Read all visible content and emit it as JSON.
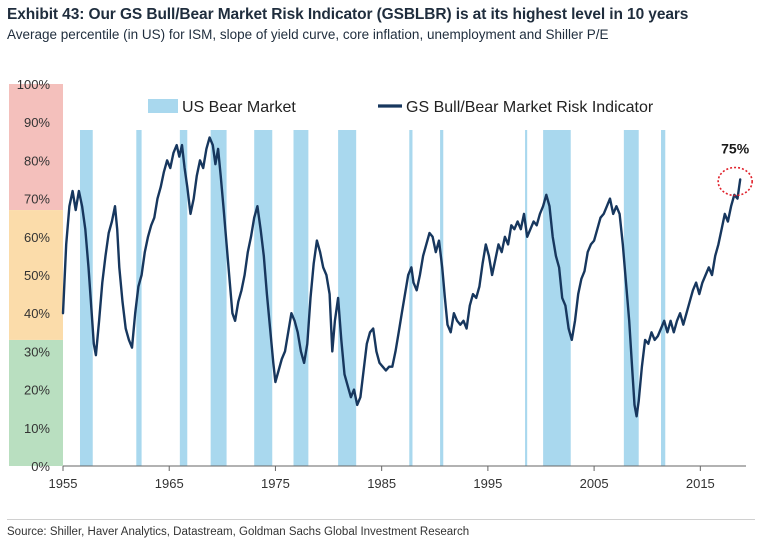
{
  "title": "Exhibit 43: Our GS Bull/Bear Market Risk Indicator (GSBLBR) is at its highest level in 10 years",
  "subtitle": "Average percentile (in US) for ISM, slope of yield curve, core inflation, unemployment and Shiller P/E",
  "source": "Source: Shiller, Haver Analytics, Datastream, Goldman Sachs Global Investment Research",
  "colors": {
    "line": "#17375e",
    "bear": "#a9d8ee",
    "zone_red": "#f4c0bc",
    "zone_orange": "#fbdcaa",
    "zone_green": "#b9dfc0",
    "highlight": "#e0202a"
  },
  "chart_data": {
    "type": "line",
    "xlim": [
      1955,
      2019.3
    ],
    "ylim": [
      0,
      100
    ],
    "x_ticks": [
      1955,
      1965,
      1975,
      1985,
      1995,
      2005,
      2015
    ],
    "y_ticks": [
      {
        "value": 0,
        "label": "0%"
      },
      {
        "value": 10,
        "label": "10%"
      },
      {
        "value": 20,
        "label": "20%"
      },
      {
        "value": 30,
        "label": "30%"
      },
      {
        "value": 40,
        "label": "40%"
      },
      {
        "value": 50,
        "label": "50%"
      },
      {
        "value": 60,
        "label": "60%"
      },
      {
        "value": 70,
        "label": "70%"
      },
      {
        "value": 80,
        "label": "80%"
      },
      {
        "value": 90,
        "label": "90%"
      },
      {
        "value": 100,
        "label": "100%"
      }
    ],
    "grid": false,
    "legend_position": "top",
    "legend": [
      {
        "label": "US Bear Market",
        "kind": "bar"
      },
      {
        "label": "GS Bull/Bear Market Risk Indicator",
        "kind": "line"
      }
    ],
    "zones": [
      {
        "from": 0,
        "to": 33,
        "color": "green"
      },
      {
        "from": 67,
        "to": 100,
        "color": "red"
      },
      {
        "from": 33,
        "to": 67,
        "color": "orange"
      }
    ],
    "bear_markets": [
      [
        1956.6,
        1957.8
      ],
      [
        1961.9,
        1962.4
      ],
      [
        1966.0,
        1966.7
      ],
      [
        1968.9,
        1970.4
      ],
      [
        1973.0,
        1974.7
      ],
      [
        1976.7,
        1978.1
      ],
      [
        1980.9,
        1982.6
      ],
      [
        1987.6,
        1987.9
      ],
      [
        1990.5,
        1990.8
      ],
      [
        1998.5,
        1998.7
      ],
      [
        2000.2,
        2002.8
      ],
      [
        2007.8,
        2009.2
      ],
      [
        2011.3,
        2011.7
      ]
    ],
    "series": [
      {
        "name": "GS Bull/Bear Market Risk Indicator",
        "points": [
          [
            1955.0,
            40
          ],
          [
            1955.3,
            58
          ],
          [
            1955.6,
            68
          ],
          [
            1955.9,
            72
          ],
          [
            1956.2,
            67
          ],
          [
            1956.5,
            72
          ],
          [
            1956.8,
            68
          ],
          [
            1957.1,
            62
          ],
          [
            1957.4,
            52
          ],
          [
            1957.7,
            40
          ],
          [
            1957.9,
            32
          ],
          [
            1958.1,
            29
          ],
          [
            1958.4,
            38
          ],
          [
            1958.7,
            48
          ],
          [
            1959.0,
            55
          ],
          [
            1959.3,
            61
          ],
          [
            1959.6,
            64
          ],
          [
            1959.9,
            68
          ],
          [
            1960.1,
            62
          ],
          [
            1960.3,
            52
          ],
          [
            1960.6,
            43
          ],
          [
            1960.9,
            36
          ],
          [
            1961.2,
            33
          ],
          [
            1961.5,
            31
          ],
          [
            1961.8,
            40
          ],
          [
            1962.1,
            47
          ],
          [
            1962.4,
            50
          ],
          [
            1962.7,
            56
          ],
          [
            1963.0,
            60
          ],
          [
            1963.3,
            63
          ],
          [
            1963.6,
            65
          ],
          [
            1963.9,
            70
          ],
          [
            1964.2,
            73
          ],
          [
            1964.5,
            77
          ],
          [
            1964.8,
            80
          ],
          [
            1965.1,
            78
          ],
          [
            1965.4,
            82
          ],
          [
            1965.7,
            84
          ],
          [
            1965.95,
            81
          ],
          [
            1966.2,
            84
          ],
          [
            1966.45,
            78
          ],
          [
            1966.7,
            73
          ],
          [
            1967.0,
            66
          ],
          [
            1967.3,
            70
          ],
          [
            1967.6,
            76
          ],
          [
            1967.9,
            80
          ],
          [
            1968.2,
            78
          ],
          [
            1968.5,
            83
          ],
          [
            1968.8,
            86
          ],
          [
            1969.1,
            84
          ],
          [
            1969.35,
            79
          ],
          [
            1969.6,
            83
          ],
          [
            1969.85,
            76
          ],
          [
            1970.1,
            68
          ],
          [
            1970.4,
            58
          ],
          [
            1970.7,
            48
          ],
          [
            1970.95,
            40
          ],
          [
            1971.2,
            38
          ],
          [
            1971.5,
            43
          ],
          [
            1971.8,
            46
          ],
          [
            1972.1,
            50
          ],
          [
            1972.4,
            56
          ],
          [
            1972.7,
            60
          ],
          [
            1973.0,
            65
          ],
          [
            1973.3,
            68
          ],
          [
            1973.6,
            62
          ],
          [
            1973.9,
            55
          ],
          [
            1974.2,
            45
          ],
          [
            1974.5,
            36
          ],
          [
            1974.8,
            27
          ],
          [
            1975.0,
            22
          ],
          [
            1975.3,
            25
          ],
          [
            1975.6,
            28
          ],
          [
            1975.9,
            30
          ],
          [
            1976.2,
            35
          ],
          [
            1976.5,
            40
          ],
          [
            1976.8,
            38
          ],
          [
            1977.1,
            35
          ],
          [
            1977.4,
            30
          ],
          [
            1977.7,
            27
          ],
          [
            1978.0,
            32
          ],
          [
            1978.3,
            44
          ],
          [
            1978.6,
            53
          ],
          [
            1978.9,
            59
          ],
          [
            1979.2,
            56
          ],
          [
            1979.5,
            52
          ],
          [
            1979.8,
            50
          ],
          [
            1980.1,
            45
          ],
          [
            1980.35,
            30
          ],
          [
            1980.6,
            38
          ],
          [
            1980.9,
            44
          ],
          [
            1981.2,
            33
          ],
          [
            1981.5,
            24
          ],
          [
            1981.8,
            21
          ],
          [
            1982.1,
            18
          ],
          [
            1982.4,
            20
          ],
          [
            1982.7,
            16
          ],
          [
            1983.0,
            18
          ],
          [
            1983.3,
            25
          ],
          [
            1983.6,
            32
          ],
          [
            1983.9,
            35
          ],
          [
            1984.2,
            36
          ],
          [
            1984.5,
            30
          ],
          [
            1984.8,
            27
          ],
          [
            1985.1,
            26
          ],
          [
            1985.4,
            25
          ],
          [
            1985.7,
            26
          ],
          [
            1986.0,
            26
          ],
          [
            1986.3,
            30
          ],
          [
            1986.6,
            35
          ],
          [
            1986.9,
            40
          ],
          [
            1987.2,
            45
          ],
          [
            1987.5,
            50
          ],
          [
            1987.8,
            52
          ],
          [
            1988.0,
            48
          ],
          [
            1988.3,
            46
          ],
          [
            1988.6,
            50
          ],
          [
            1988.9,
            55
          ],
          [
            1989.2,
            58
          ],
          [
            1989.5,
            61
          ],
          [
            1989.8,
            60
          ],
          [
            1990.1,
            56
          ],
          [
            1990.4,
            59
          ],
          [
            1990.7,
            52
          ],
          [
            1990.95,
            44
          ],
          [
            1991.2,
            37
          ],
          [
            1991.5,
            35
          ],
          [
            1991.8,
            40
          ],
          [
            1992.1,
            38
          ],
          [
            1992.4,
            37
          ],
          [
            1992.7,
            38
          ],
          [
            1993.0,
            36
          ],
          [
            1993.3,
            42
          ],
          [
            1993.6,
            45
          ],
          [
            1993.9,
            44
          ],
          [
            1994.2,
            47
          ],
          [
            1994.5,
            53
          ],
          [
            1994.8,
            58
          ],
          [
            1995.1,
            55
          ],
          [
            1995.4,
            50
          ],
          [
            1995.7,
            54
          ],
          [
            1996.0,
            58
          ],
          [
            1996.3,
            56
          ],
          [
            1996.6,
            60
          ],
          [
            1996.9,
            58
          ],
          [
            1997.2,
            63
          ],
          [
            1997.5,
            62
          ],
          [
            1997.8,
            64
          ],
          [
            1998.1,
            62
          ],
          [
            1998.4,
            66
          ],
          [
            1998.7,
            60
          ],
          [
            1999.0,
            62
          ],
          [
            1999.3,
            64
          ],
          [
            1999.6,
            63
          ],
          [
            1999.9,
            66
          ],
          [
            2000.2,
            68
          ],
          [
            2000.5,
            71
          ],
          [
            2000.8,
            68
          ],
          [
            2001.1,
            60
          ],
          [
            2001.4,
            55
          ],
          [
            2001.7,
            52
          ],
          [
            2002.0,
            44
          ],
          [
            2002.3,
            42
          ],
          [
            2002.6,
            36
          ],
          [
            2002.9,
            33
          ],
          [
            2003.2,
            38
          ],
          [
            2003.5,
            45
          ],
          [
            2003.8,
            49
          ],
          [
            2004.1,
            51
          ],
          [
            2004.4,
            56
          ],
          [
            2004.7,
            58
          ],
          [
            2005.0,
            59
          ],
          [
            2005.3,
            62
          ],
          [
            2005.6,
            65
          ],
          [
            2005.9,
            66
          ],
          [
            2006.2,
            68
          ],
          [
            2006.5,
            70
          ],
          [
            2006.8,
            66
          ],
          [
            2007.1,
            68
          ],
          [
            2007.4,
            66
          ],
          [
            2007.7,
            58
          ],
          [
            2008.0,
            48
          ],
          [
            2008.3,
            38
          ],
          [
            2008.6,
            25
          ],
          [
            2008.8,
            16
          ],
          [
            2009.0,
            13
          ],
          [
            2009.2,
            17
          ],
          [
            2009.5,
            26
          ],
          [
            2009.8,
            33
          ],
          [
            2010.1,
            32
          ],
          [
            2010.4,
            35
          ],
          [
            2010.7,
            33
          ],
          [
            2011.0,
            34
          ],
          [
            2011.3,
            36
          ],
          [
            2011.6,
            38
          ],
          [
            2011.9,
            35
          ],
          [
            2012.2,
            38
          ],
          [
            2012.5,
            35
          ],
          [
            2012.8,
            38
          ],
          [
            2013.1,
            40
          ],
          [
            2013.4,
            37
          ],
          [
            2013.7,
            40
          ],
          [
            2014.0,
            43
          ],
          [
            2014.3,
            46
          ],
          [
            2014.6,
            48
          ],
          [
            2014.9,
            45
          ],
          [
            2015.2,
            48
          ],
          [
            2015.5,
            50
          ],
          [
            2015.8,
            52
          ],
          [
            2016.1,
            50
          ],
          [
            2016.4,
            55
          ],
          [
            2016.7,
            58
          ],
          [
            2017.0,
            62
          ],
          [
            2017.3,
            66
          ],
          [
            2017.6,
            64
          ],
          [
            2017.9,
            68
          ],
          [
            2018.2,
            71
          ],
          [
            2018.5,
            70
          ],
          [
            2018.75,
            75
          ]
        ]
      }
    ],
    "annotations": [
      {
        "text": "75%",
        "x": 2018.75,
        "y": 75
      }
    ]
  }
}
